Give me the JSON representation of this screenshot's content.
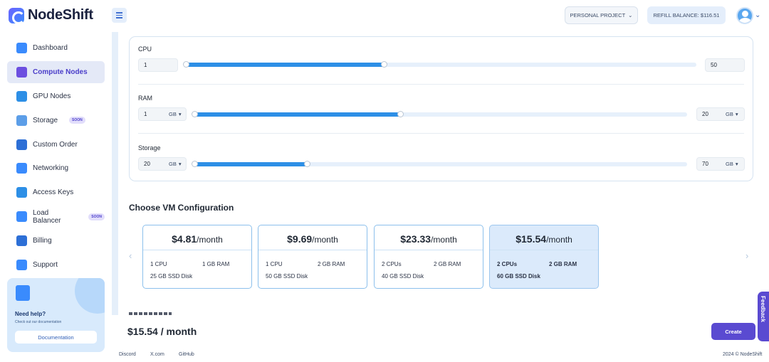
{
  "header": {
    "brand": "NodeShift",
    "project_label": "PERSONAL PROJECT",
    "refill_label": "REFILL BALANCE: $116.51",
    "icons": [
      "menu-icon",
      "chevron-down-icon",
      "avatar-icon"
    ]
  },
  "sidebar": {
    "items": [
      {
        "label": "Dashboard",
        "icon": "dashboard-icon",
        "color": "#3a8bfd"
      },
      {
        "label": "Compute Nodes",
        "icon": "chip-icon",
        "color": "#6c4fe0",
        "active": true
      },
      {
        "label": "GPU Nodes",
        "icon": "gpu-icon",
        "color": "#2d8fe6"
      },
      {
        "label": "Storage",
        "icon": "storage-icon",
        "color": "#5c9ee8",
        "badge": "SOON"
      },
      {
        "label": "Custom Order",
        "icon": "document-icon",
        "color": "#2d6fd6"
      },
      {
        "label": "Networking",
        "icon": "cloud-icon",
        "color": "#3a8bfd"
      },
      {
        "label": "Access Keys",
        "icon": "key-icon",
        "color": "#2d8fe6"
      },
      {
        "label": "Load Balancer",
        "icon": "balancer-icon",
        "color": "#3a8bfd",
        "badge": "SOON"
      },
      {
        "label": "Billing",
        "icon": "billing-icon",
        "color": "#2d6fd6"
      },
      {
        "label": "Support",
        "icon": "support-icon",
        "color": "#3a8bfd"
      }
    ],
    "help": {
      "title": "Need help?",
      "subtitle": "Check out our documentation",
      "button": "Documentation"
    }
  },
  "resources": {
    "cpu": {
      "label": "CPU",
      "min": "1",
      "max": "50",
      "level": 0.39
    },
    "ram": {
      "label": "RAM",
      "min": "1",
      "min_unit": "GB",
      "max": "20",
      "max_unit": "GB",
      "level": 0.42
    },
    "storage": {
      "label": "Storage",
      "min": "20",
      "min_unit": "GB",
      "max": "70",
      "max_unit": "GB",
      "level": 0.23
    }
  },
  "vm": {
    "section_title": "Choose VM Configuration",
    "per_label": "/month",
    "configs": [
      {
        "price": "$4.81",
        "cpu": "1 CPU",
        "ram": "1 GB RAM",
        "disk": "25 GB SSD Disk",
        "selected": false
      },
      {
        "price": "$9.69",
        "cpu": "1 CPU",
        "ram": "2 GB RAM",
        "disk": "50 GB SSD Disk",
        "selected": false
      },
      {
        "price": "$23.33",
        "cpu": "2 CPUs",
        "ram": "2 GB RAM",
        "disk": "40 GB SSD Disk",
        "selected": false
      },
      {
        "price": "$15.54",
        "cpu": "2 CPUs",
        "ram": "2 GB RAM",
        "disk": "60 GB SSD Disk",
        "selected": true
      }
    ]
  },
  "summary": {
    "total": "$15.54 / month",
    "create_label": "Create"
  },
  "footer": {
    "links": [
      "Discord",
      "X.com",
      "GitHub"
    ],
    "copyright": "2024 © NodeShift"
  },
  "feedback_label": "Feedback"
}
